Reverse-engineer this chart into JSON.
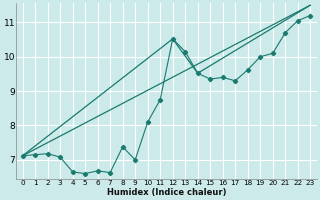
{
  "xlabel": "Humidex (Indice chaleur)",
  "bg_color": "#cceaea",
  "grid_color": "#ffffff",
  "line_color": "#1a7a6e",
  "xmin": -0.5,
  "xmax": 23.5,
  "ymin": 6.45,
  "ymax": 11.55,
  "yticks": [
    7,
    8,
    9,
    10,
    11
  ],
  "xticks": [
    0,
    1,
    2,
    3,
    4,
    5,
    6,
    7,
    8,
    9,
    10,
    11,
    12,
    13,
    14,
    15,
    16,
    17,
    18,
    19,
    20,
    21,
    22,
    23
  ],
  "series1_x": [
    0,
    1,
    2,
    3,
    4,
    5,
    6,
    7,
    8,
    9,
    10,
    11,
    12,
    13,
    14,
    15,
    16,
    17,
    18,
    19,
    20,
    21,
    22,
    23
  ],
  "series1_y": [
    7.12,
    7.15,
    7.18,
    7.08,
    6.65,
    6.6,
    6.68,
    6.63,
    7.38,
    7.0,
    8.1,
    8.75,
    10.52,
    10.15,
    9.52,
    9.35,
    9.4,
    9.3,
    9.62,
    10.0,
    10.1,
    10.7,
    11.05,
    11.2
  ],
  "series2_x": [
    0,
    23
  ],
  "series2_y": [
    7.12,
    11.5
  ],
  "series3_x": [
    0,
    12,
    14,
    23
  ],
  "series3_y": [
    7.12,
    10.52,
    9.52,
    11.5
  ],
  "xlabel_fontsize": 6.0,
  "tick_fontsize_x": 5.2,
  "tick_fontsize_y": 6.5
}
